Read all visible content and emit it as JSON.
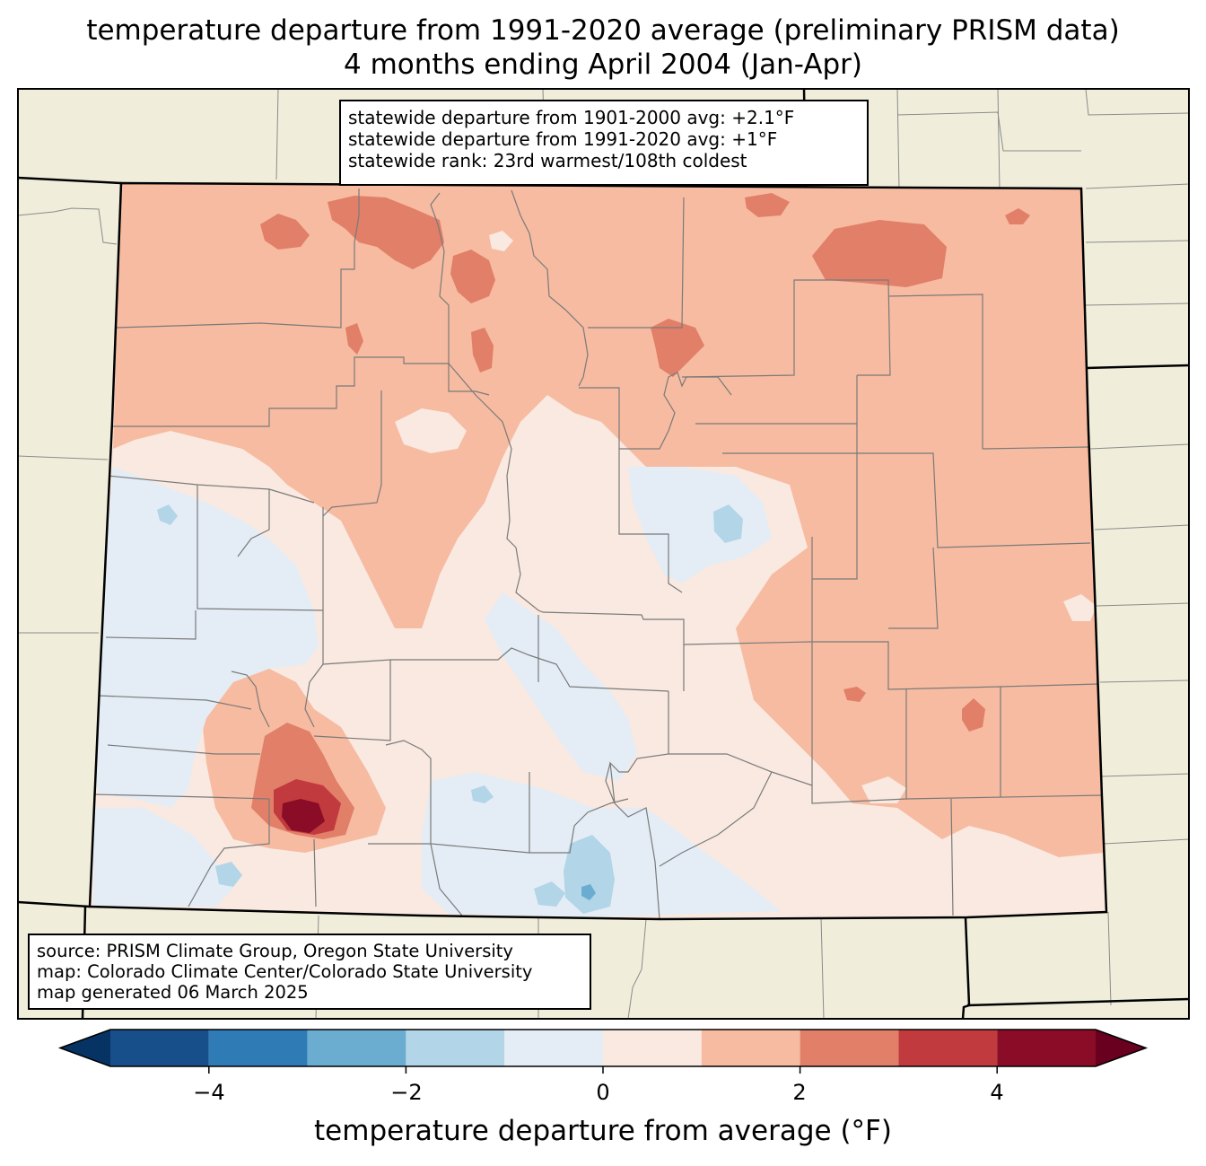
{
  "title": {
    "line1": "temperature departure from 1991-2020 average (preliminary PRISM data)",
    "line2": "4 months ending April 2004 (Jan-Apr)"
  },
  "stats": {
    "line1": "statewide departure from 1901-2000 avg: +2.1°F",
    "line2": "statewide departure from 1991-2020 avg: +1°F",
    "line3": "statewide rank: 23rd warmest/108th coldest"
  },
  "source": {
    "line1": "source: PRISM Climate Group, Oregon State University",
    "line2": "map: Colorado Climate Center/Colorado State University",
    "line3": "map generated 06 March 2025"
  },
  "colorbar": {
    "label": "temperature departure from average (°F)",
    "ticks": [
      "−4",
      "−2",
      "0",
      "2",
      "4"
    ],
    "bins": [
      -5,
      -4,
      -3,
      -2,
      -1,
      0,
      1,
      2,
      3,
      4,
      5
    ],
    "colors": [
      "#164f8a",
      "#2f7bb6",
      "#6aadd0",
      "#b2d5e7",
      "#e4edf5",
      "#f9e9e0",
      "#f6bba1",
      "#e17f68",
      "#c13a3e",
      "#8a0c26"
    ],
    "under_color": "#073264",
    "over_color": "#6a0020"
  },
  "map_colors": {
    "land_background": "#f0eedb",
    "state_border": "#000000",
    "county_border": "#808080"
  }
}
